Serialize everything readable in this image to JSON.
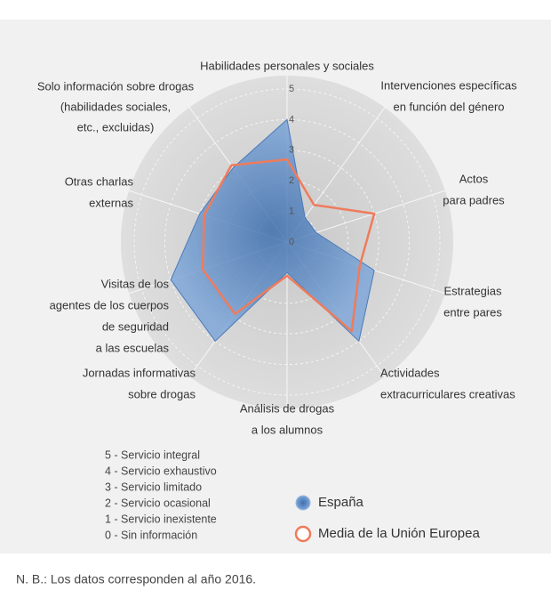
{
  "chart_data": {
    "type": "radar",
    "categories": [
      [
        "Habilidades personales y sociales"
      ],
      [
        "Intervenciones específicas",
        "en función del género"
      ],
      [
        "Actos",
        "para padres"
      ],
      [
        "Estrategias",
        "entre pares"
      ],
      [
        "Actividades",
        "extracurriculares creativas"
      ],
      [
        "Análisis de drogas",
        "a los alumnos"
      ],
      [
        "Jornadas informativas",
        "sobre drogas"
      ],
      [
        "Visitas de los",
        "agentes de los cuerpos",
        "de seguridad",
        "a las escuelas"
      ],
      [
        "Otras charlas",
        "externas"
      ],
      [
        "Solo información sobre drogas",
        "(habilidades sociales,",
        "etc., excluidas)"
      ]
    ],
    "series": [
      {
        "name": "España",
        "color": "#5b8fcb",
        "values": [
          4,
          1,
          1,
          3,
          4,
          1,
          4,
          4,
          3,
          3
        ]
      },
      {
        "name": "Media de la Unión Europea",
        "color": "#ef7b5c",
        "values": [
          2.7,
          1.5,
          3,
          2.5,
          3.6,
          1.1,
          2.9,
          2.9,
          2.85,
          3.1
        ]
      }
    ],
    "ylim": [
      0,
      5
    ],
    "yticks": [
      0,
      1,
      2,
      3,
      4,
      5
    ],
    "scale_notes": [
      "5 - Servicio integral",
      "4 - Servicio exhaustivo",
      "3 - Servicio limitado",
      "2 - Servicio ocasional",
      "1 - Servicio inexistente",
      "0 - Sin información"
    ],
    "footnote": "N. B.: Los datos corresponden al año 2016."
  }
}
